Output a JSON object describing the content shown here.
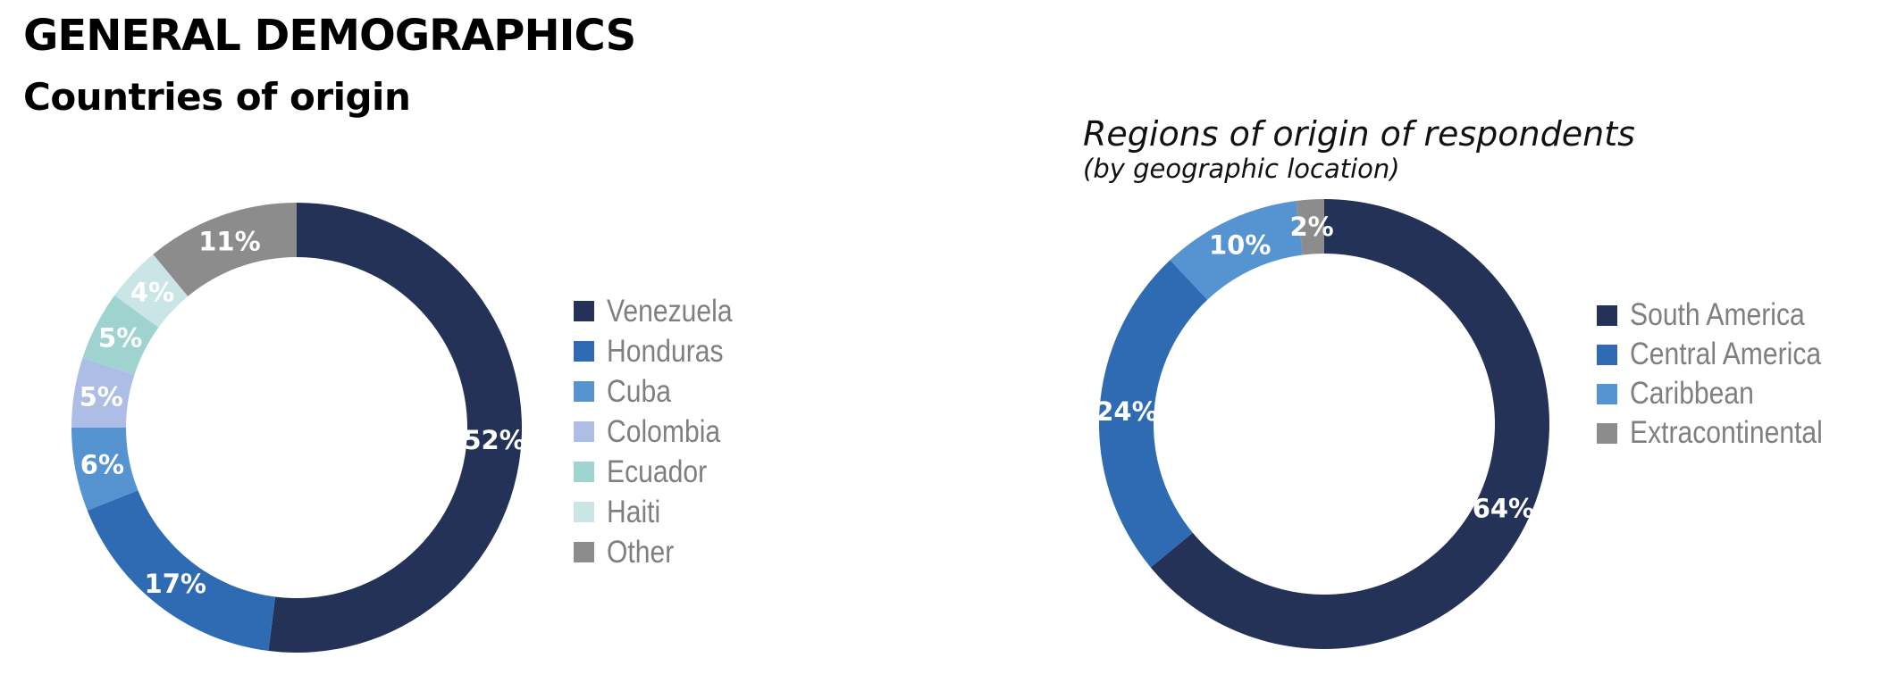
{
  "page": {
    "title": "GENERAL DEMOGRAPHICS",
    "section_title": "Countries of origin"
  },
  "chart_data": [
    {
      "type": "pie",
      "variant": "donut",
      "title": "",
      "legend": "right",
      "slices": [
        {
          "name": "Venezuela",
          "value": 52,
          "label": "52%",
          "color": "#233256"
        },
        {
          "name": "Honduras",
          "value": 17,
          "label": "17%",
          "color": "#2e6bb3"
        },
        {
          "name": "Cuba",
          "value": 6,
          "label": "6%",
          "color": "#5593d1"
        },
        {
          "name": "Colombia",
          "value": 5,
          "label": "5%",
          "color": "#adbde6"
        },
        {
          "name": "Ecuador",
          "value": 5,
          "label": "5%",
          "color": "#9fd3d0"
        },
        {
          "name": "Haiti",
          "value": 4,
          "label": "4%",
          "color": "#c9e5e6"
        },
        {
          "name": "Other",
          "value": 11,
          "label": "11%",
          "color": "#8c8c8c"
        }
      ]
    },
    {
      "type": "pie",
      "variant": "donut",
      "title": "Regions of origin of respondents",
      "subtitle": "(by geographic location)",
      "legend": "right",
      "slices": [
        {
          "name": "South America",
          "value": 64,
          "label": "64%",
          "color": "#233256"
        },
        {
          "name": "Central America",
          "value": 24,
          "label": "24%",
          "color": "#2e6bb3"
        },
        {
          "name": "Caribbean",
          "value": 10,
          "label": "10%",
          "color": "#5593d1"
        },
        {
          "name": "Extracontinental",
          "value": 2,
          "label": "2%",
          "color": "#8c8c8c"
        }
      ]
    }
  ]
}
